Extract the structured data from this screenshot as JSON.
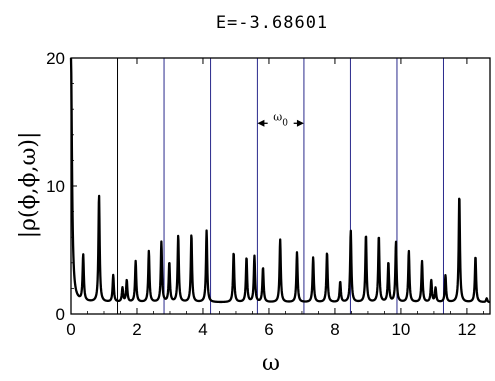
{
  "chart_data": {
    "type": "line",
    "title": "E=-3.68601",
    "xlabel": "ω",
    "ylabel": "|ρ(ϕ,ϕ,ω)|",
    "xlim": [
      0,
      12.7
    ],
    "ylim": [
      0,
      20
    ],
    "xticks": [
      0,
      2,
      4,
      6,
      8,
      10,
      12
    ],
    "yticks": [
      0,
      10,
      20
    ],
    "grid": false,
    "colors": {
      "curve": "#000000",
      "vlines_blue": "#2a2a8c",
      "vlines_black": "#000000"
    },
    "vertical_lines": [
      {
        "x": 1.41,
        "color": "black"
      },
      {
        "x": 2.82,
        "color": "blue"
      },
      {
        "x": 4.23,
        "color": "blue"
      },
      {
        "x": 5.65,
        "color": "blue"
      },
      {
        "x": 7.06,
        "color": "blue"
      },
      {
        "x": 8.47,
        "color": "blue"
      },
      {
        "x": 9.88,
        "color": "blue"
      },
      {
        "x": 11.29,
        "color": "blue"
      }
    ],
    "annotation": {
      "text": "ω0",
      "x_from": 5.65,
      "x_to": 7.06,
      "y": 14.9
    },
    "baseline": 0.9,
    "peaks": [
      [
        0.0,
        20.0
      ],
      [
        0.37,
        4.5
      ],
      [
        0.85,
        9.3
      ],
      [
        1.28,
        3.0
      ],
      [
        1.56,
        2.0
      ],
      [
        1.69,
        2.6
      ],
      [
        1.96,
        4.1
      ],
      [
        2.36,
        4.9
      ],
      [
        2.74,
        5.6
      ],
      [
        2.98,
        4.0
      ],
      [
        3.25,
        6.1
      ],
      [
        3.65,
        6.2
      ],
      [
        4.11,
        6.5
      ],
      [
        4.93,
        4.8
      ],
      [
        5.32,
        4.4
      ],
      [
        5.56,
        4.5
      ],
      [
        5.82,
        3.6
      ],
      [
        6.34,
        5.8
      ],
      [
        6.85,
        4.8
      ],
      [
        7.34,
        4.4
      ],
      [
        7.76,
        4.8
      ],
      [
        8.16,
        2.5
      ],
      [
        8.48,
        6.5
      ],
      [
        8.94,
        6.2
      ],
      [
        9.33,
        6.1
      ],
      [
        9.62,
        4.0
      ],
      [
        9.85,
        5.6
      ],
      [
        10.24,
        4.9
      ],
      [
        10.64,
        4.1
      ],
      [
        10.92,
        2.6
      ],
      [
        11.05,
        2.0
      ],
      [
        11.35,
        3.0
      ],
      [
        11.77,
        9.3
      ],
      [
        12.26,
        4.5
      ],
      [
        12.6,
        1.2
      ]
    ]
  }
}
